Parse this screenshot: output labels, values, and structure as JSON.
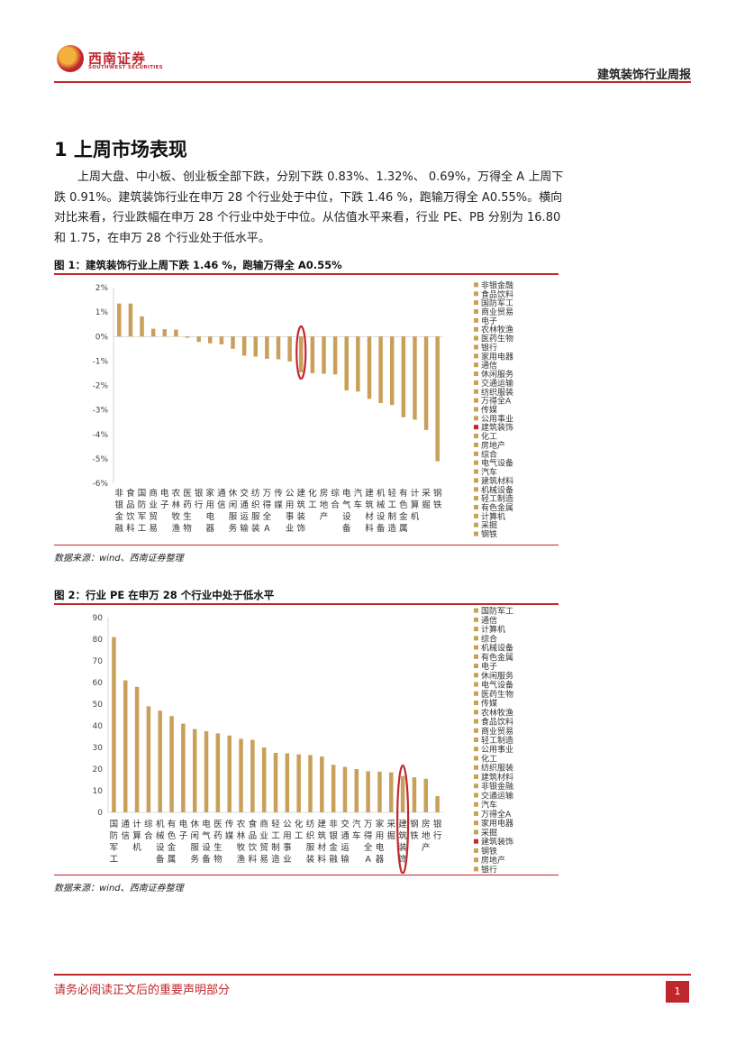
{
  "header": {
    "logo_cn": "西南证券",
    "logo_en": "SOUTHWEST SECURITIES",
    "report_title": "建筑装饰行业周报"
  },
  "section": {
    "title": "1  上周市场表现"
  },
  "paragraph": "上周大盘、中小板、创业板全部下跌，分别下跌 0.83%、1.32%、 0.69%，万得全 A 上周下跌 0.91%。建筑装饰行业在申万 28 个行业处于中位，下跌 1.46 %，跑输万得全 A0.55%。横向对比来看，行业跌幅在申万 28 个行业中处于中位。从估值水平来看，行业 PE、PB 分别为 16.80 和 1.75，在申万 28 个行业处于低水平。",
  "figure1": {
    "title": "图 1：建筑装饰行业上周下跌 1.46 %，跑输万得全 A0.55%",
    "source": "数据来源：wind、西南证券整理"
  },
  "figure2": {
    "title": "图 2：行业 PE 在申万 28 个行业中处于低水平",
    "source": "数据来源：wind、西南证券整理"
  },
  "chart_data": [
    {
      "type": "bar",
      "categories": [
        "非银金融",
        "食品饮料",
        "国防军工",
        "商业贸易",
        "电子",
        "农林牧渔",
        "医药生物",
        "银行",
        "家用电器",
        "通信",
        "休闲服务",
        "交通运输",
        "纺织服装",
        "万得全A",
        "传媒",
        "公用事业",
        "建筑装饰",
        "化工",
        "房地产",
        "综合",
        "电气设备",
        "汽车",
        "建筑材料",
        "机械设备",
        "轻工制造",
        "有色金属",
        "计算机",
        "采掘",
        "钢铁"
      ],
      "values": [
        1.35,
        1.35,
        0.82,
        0.32,
        0.3,
        0.28,
        -0.05,
        -0.22,
        -0.28,
        -0.32,
        -0.5,
        -0.78,
        -0.82,
        -0.91,
        -0.93,
        -1.02,
        -1.46,
        -1.5,
        -1.52,
        -1.55,
        -2.2,
        -2.25,
        -2.55,
        -2.72,
        -2.8,
        -3.3,
        -3.4,
        -3.82,
        -5.1
      ],
      "highlight": "建筑装饰",
      "highlight_color": "#c0272d",
      "bar_color": "#c9a05a",
      "ylim": [
        -6,
        2
      ],
      "yticks": [
        "2%",
        "1%",
        "0%",
        "-1%",
        "-2%",
        "-3%",
        "-4%",
        "-5%",
        "-6%"
      ],
      "legend": "right",
      "grid": false
    },
    {
      "type": "bar",
      "categories": [
        "国防军工",
        "通信",
        "计算机",
        "综合",
        "机械设备",
        "有色金属",
        "电子",
        "休闲服务",
        "电气设备",
        "医药生物",
        "传媒",
        "农林牧渔",
        "食品饮料",
        "商业贸易",
        "轻工制造",
        "公用事业",
        "化工",
        "纺织服装",
        "建筑材料",
        "非银金融",
        "交通运输",
        "汽车",
        "万得全A",
        "家用电器",
        "采掘",
        "建筑装饰",
        "钢铁",
        "房地产",
        "银行"
      ],
      "values": [
        81,
        61,
        58,
        49,
        47,
        44.5,
        41,
        38.5,
        37.5,
        36.5,
        35.5,
        34,
        33.5,
        30,
        27.5,
        27.3,
        26.8,
        26.5,
        25.8,
        22,
        21,
        20,
        19,
        18.8,
        18.5,
        16.8,
        16.2,
        15.5,
        7.5
      ],
      "highlight": "建筑装饰",
      "highlight_color": "#c0272d",
      "bar_color": "#c9a05a",
      "ylim": [
        0,
        90
      ],
      "yticks": [
        "90",
        "80",
        "70",
        "60",
        "50",
        "40",
        "30",
        "20",
        "10",
        "0"
      ],
      "legend": "right",
      "grid": false
    }
  ],
  "footer": {
    "disclaimer": "请务必阅读正文后的重要声明部分",
    "page": "1"
  }
}
